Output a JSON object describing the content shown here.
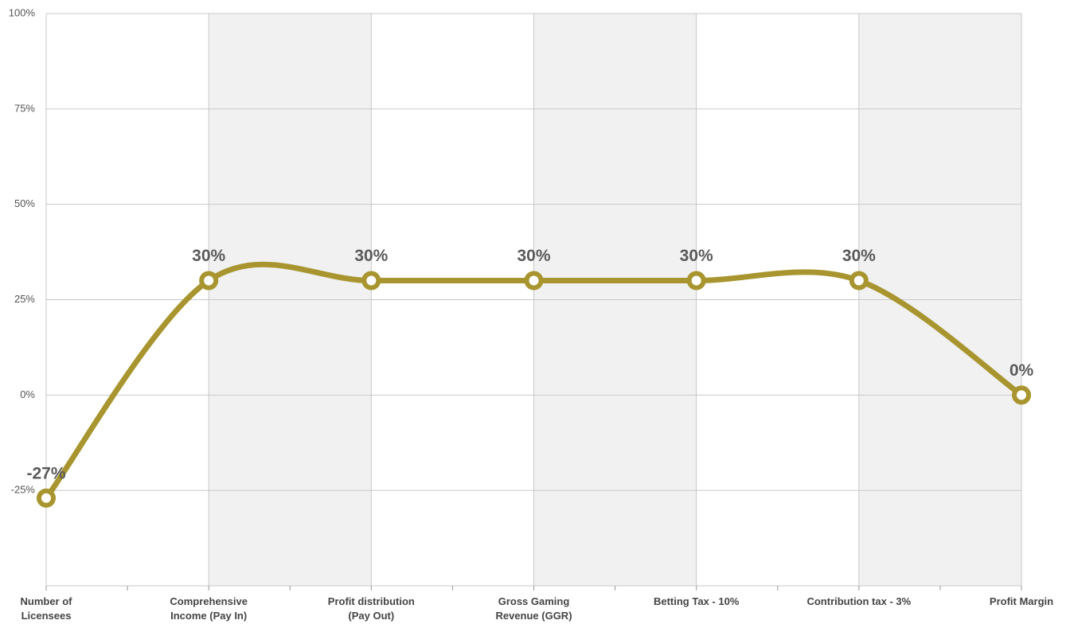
{
  "chart_data": {
    "type": "line",
    "categories": [
      "Number of\nLicensees",
      "Comprehensive\nIncome (Pay In)",
      "Profit distribution\n(Pay Out)",
      "Gross Gaming\nRevenue (GGR)",
      "Betting Tax - 10%",
      "Contribution tax - 3%",
      "Profit Margin"
    ],
    "values": [
      -27,
      30,
      30,
      30,
      30,
      30,
      0
    ],
    "value_labels": [
      "-27%",
      "30%",
      "30%",
      "30%",
      "30%",
      "30%",
      "0%"
    ],
    "color": "#a8952f",
    "ylim": [
      -50,
      100
    ],
    "yticks": [
      {
        "value": 100,
        "label": "100%"
      },
      {
        "value": 75,
        "label": "75%"
      },
      {
        "value": 50,
        "label": "50%"
      },
      {
        "value": 25,
        "label": "25%"
      },
      {
        "value": 0,
        "label": "0%"
      },
      {
        "value": -25,
        "label": "-25%"
      }
    ],
    "grid": true
  }
}
